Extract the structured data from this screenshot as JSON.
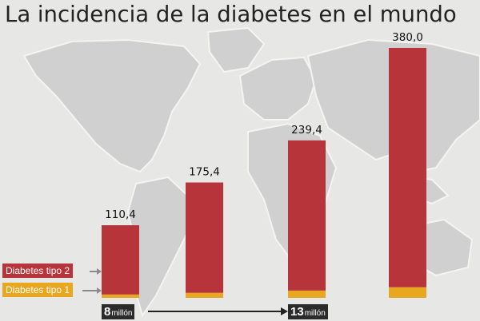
{
  "title": "La incidencia de la diabetes en el mundo",
  "colors": {
    "type2": "#b7343a",
    "type1": "#e8a71f",
    "background": "#e7e7e6"
  },
  "chart_data": {
    "type": "bar",
    "stacked": true,
    "title": "La incidencia de la diabetes en el mundo",
    "categories": [
      "",
      "",
      "",
      ""
    ],
    "totals": [
      "110,4",
      "175,4",
      "239,4",
      "380,0"
    ],
    "series": [
      {
        "name": "Diabetes tipo 1",
        "color": "#e8a71f",
        "values": [
          5,
          7.5,
          11,
          16
        ]
      },
      {
        "name": "Diabetes tipo 2",
        "color": "#b7343a",
        "values": [
          105.4,
          167.9,
          228.4,
          364
        ]
      }
    ],
    "ylim": [
      0,
      380
    ],
    "legend_position": "left",
    "grid": false
  },
  "legend": {
    "type2": "Diabetes tipo 2",
    "type1": "Diabetes tipo 1"
  },
  "timeline": {
    "start_number": "8",
    "start_unit": "millón",
    "end_number": "13",
    "end_unit": "millón"
  },
  "background_icon": "world-map"
}
